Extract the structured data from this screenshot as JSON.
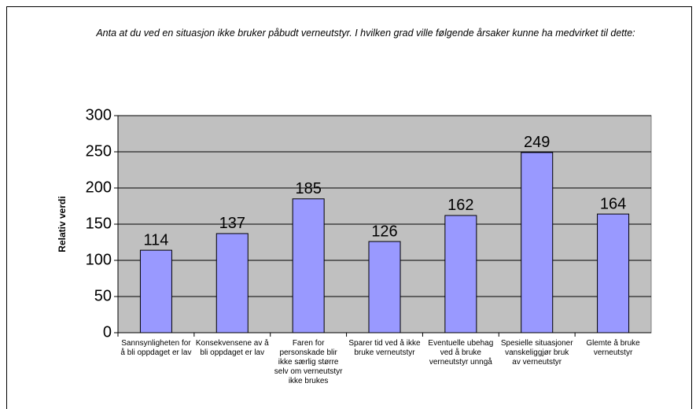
{
  "chart_data": {
    "type": "bar",
    "title": "Anta at du ved en situasjon ikke bruker påbudt verneutstyr. I hvilken grad ville følgende årsaker kunne ha medvirket til dette:",
    "y_label": "Relativ verdi",
    "categories": [
      "Sannsynligheten for å bli oppdaget er lav",
      "Konsekvensene av å bli oppdaget er lav",
      "Faren for personskade blir ikke særlig større selv om verneutstyr ikke brukes",
      "Sparer tid ved å ikke bruke verneutstyr",
      "Eventuelle ubehag ved å bruke verneutstyr unngå",
      "Spesielle situasjoner vanskeliggjør bruk av verneutstyr",
      "Glemte å bruke verneutstyr"
    ],
    "values": [
      114,
      137,
      185,
      126,
      162,
      249,
      164
    ],
    "color": "#9999ff",
    "ylim": [
      0,
      300
    ],
    "yticks": [
      0,
      50,
      100,
      150,
      200,
      250,
      300
    ],
    "grid": true
  }
}
